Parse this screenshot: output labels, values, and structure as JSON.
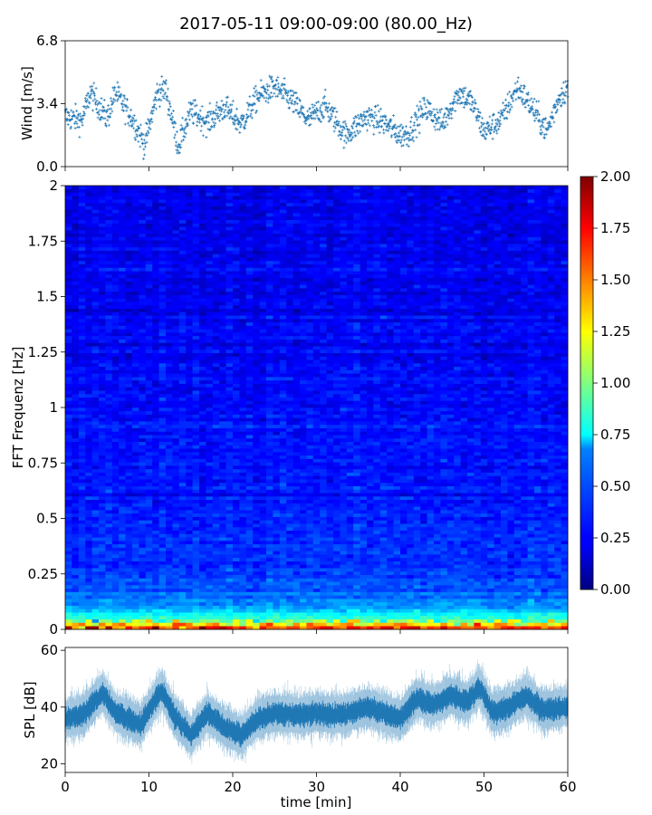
{
  "title": "2017-05-11 09:00-09:00 (80.00_Hz)",
  "chart_data": [
    {
      "type": "scatter",
      "ylabel": "Wind [m/s]",
      "xlabel": "",
      "xlim": [
        0,
        60
      ],
      "ylim": [
        0,
        6.8
      ],
      "yticks": [
        "0.0",
        "3.4",
        "6.8"
      ],
      "xticks": [
        0,
        10,
        20,
        30,
        40,
        50,
        60
      ],
      "marker": "+",
      "color": "#1f77b4",
      "series_profile": [
        {
          "x": 0,
          "y": 2.7
        },
        {
          "x": 2,
          "y": 2.5
        },
        {
          "x": 3,
          "y": 4.0
        },
        {
          "x": 5,
          "y": 2.6
        },
        {
          "x": 6,
          "y": 4.0
        },
        {
          "x": 8,
          "y": 2.6
        },
        {
          "x": 9.5,
          "y": 1.2
        },
        {
          "x": 11,
          "y": 4.0
        },
        {
          "x": 12,
          "y": 4.2
        },
        {
          "x": 13.5,
          "y": 1.1
        },
        {
          "x": 15,
          "y": 3.0
        },
        {
          "x": 17,
          "y": 2.4
        },
        {
          "x": 19,
          "y": 3.2
        },
        {
          "x": 21,
          "y": 2.3
        },
        {
          "x": 23,
          "y": 3.8
        },
        {
          "x": 25,
          "y": 4.3
        },
        {
          "x": 27,
          "y": 3.6
        },
        {
          "x": 29,
          "y": 2.5
        },
        {
          "x": 31,
          "y": 3.3
        },
        {
          "x": 33.5,
          "y": 1.7
        },
        {
          "x": 36,
          "y": 2.7
        },
        {
          "x": 38,
          "y": 2.4
        },
        {
          "x": 40,
          "y": 1.7
        },
        {
          "x": 41,
          "y": 1.8
        },
        {
          "x": 43,
          "y": 3.2
        },
        {
          "x": 45,
          "y": 2.3
        },
        {
          "x": 46,
          "y": 3.2
        },
        {
          "x": 47,
          "y": 4.0
        },
        {
          "x": 48.5,
          "y": 3.5
        },
        {
          "x": 50,
          "y": 1.9
        },
        {
          "x": 52,
          "y": 2.5
        },
        {
          "x": 54,
          "y": 4.3
        },
        {
          "x": 56,
          "y": 3.0
        },
        {
          "x": 57.5,
          "y": 1.9
        },
        {
          "x": 59,
          "y": 3.8
        },
        {
          "x": 60,
          "y": 4.3
        }
      ],
      "spread": 0.7
    },
    {
      "type": "heatmap",
      "ylabel": "FFT Frequenz [Hz]",
      "xlabel": "",
      "xlim": [
        0,
        60
      ],
      "ylim": [
        0,
        2
      ],
      "yticks": [
        "0",
        "0.25",
        "0.5",
        "0.75",
        "1",
        "1.25",
        "1.5",
        "1.75",
        "2"
      ],
      "xticks": [
        0,
        10,
        20,
        30,
        40,
        50,
        60
      ],
      "colormap": "jet",
      "colorbar": {
        "range": [
          0,
          2
        ],
        "ticks": [
          "0.00",
          "0.25",
          "0.50",
          "0.75",
          "1.00",
          "1.25",
          "1.50",
          "1.75",
          "2.00"
        ]
      },
      "value_profile": [
        {
          "freq": 0.0,
          "value": 1.8
        },
        {
          "freq": 0.02,
          "value": 1.3
        },
        {
          "freq": 0.05,
          "value": 0.85
        },
        {
          "freq": 0.1,
          "value": 0.55
        },
        {
          "freq": 0.2,
          "value": 0.4
        },
        {
          "freq": 0.5,
          "value": 0.3
        },
        {
          "freq": 1.0,
          "value": 0.26
        },
        {
          "freq": 2.0,
          "value": 0.22
        }
      ]
    },
    {
      "type": "line",
      "ylabel": "SPL [dB]",
      "xlabel": "time [min]",
      "xlim": [
        0,
        60
      ],
      "ylim": [
        17,
        61
      ],
      "yticks": [
        "20",
        "40",
        "60"
      ],
      "xticks": [
        "0",
        "10",
        "20",
        "30",
        "40",
        "50",
        "60"
      ],
      "color": "#1f77b4",
      "series_profile": [
        {
          "x": 0,
          "y": 36
        },
        {
          "x": 2,
          "y": 37
        },
        {
          "x": 4.5,
          "y": 45
        },
        {
          "x": 6,
          "y": 38
        },
        {
          "x": 9,
          "y": 34
        },
        {
          "x": 11.5,
          "y": 46
        },
        {
          "x": 13,
          "y": 37
        },
        {
          "x": 15,
          "y": 30
        },
        {
          "x": 17,
          "y": 38
        },
        {
          "x": 19,
          "y": 33
        },
        {
          "x": 21,
          "y": 30
        },
        {
          "x": 23,
          "y": 36
        },
        {
          "x": 25,
          "y": 38
        },
        {
          "x": 28,
          "y": 37
        },
        {
          "x": 30,
          "y": 38
        },
        {
          "x": 32,
          "y": 37
        },
        {
          "x": 34,
          "y": 38
        },
        {
          "x": 36,
          "y": 40
        },
        {
          "x": 38,
          "y": 38
        },
        {
          "x": 40,
          "y": 36
        },
        {
          "x": 42,
          "y": 43
        },
        {
          "x": 44,
          "y": 41
        },
        {
          "x": 46,
          "y": 44
        },
        {
          "x": 48,
          "y": 42
        },
        {
          "x": 49.5,
          "y": 47
        },
        {
          "x": 51,
          "y": 38
        },
        {
          "x": 53,
          "y": 40
        },
        {
          "x": 55,
          "y": 44
        },
        {
          "x": 57,
          "y": 39
        },
        {
          "x": 60,
          "y": 40
        }
      ],
      "band": 6
    }
  ]
}
